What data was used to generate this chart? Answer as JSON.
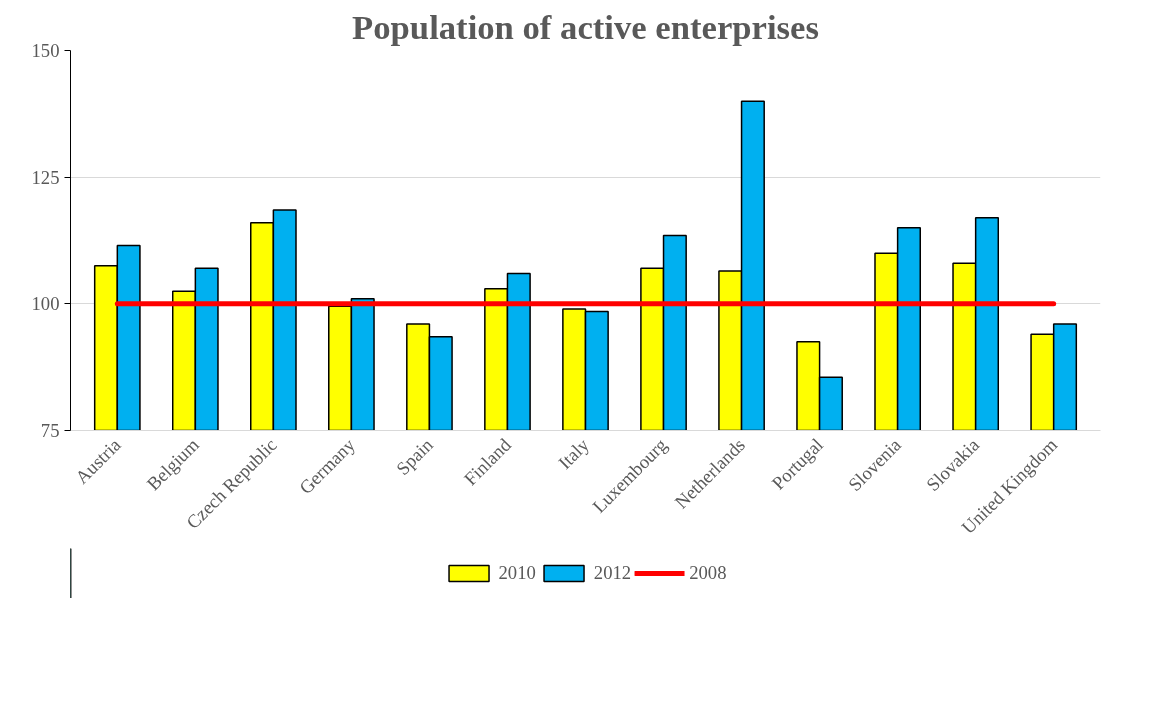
{
  "chart_data": {
    "type": "bar",
    "title": "Population of active enterprises",
    "categories": [
      "Austria",
      "Belgium",
      "Czech Republic",
      "Germany",
      "Spain",
      "Finland",
      "Italy",
      "Luxembourg",
      "Netherlands",
      "Portugal",
      "Slovenia",
      "Slovakia",
      "United Kingdom"
    ],
    "series": [
      {
        "name": "2010",
        "color": "#ffff00",
        "values": [
          107.5,
          102.5,
          116,
          99.5,
          96,
          103,
          99,
          107,
          106.5,
          92.5,
          110,
          108,
          94
        ]
      },
      {
        "name": "2012",
        "color": "#00b0f0",
        "values": [
          111.5,
          107,
          118.5,
          101,
          93.5,
          106,
          98.5,
          113.5,
          140,
          85.5,
          115,
          117,
          96
        ]
      },
      {
        "name": "2008",
        "type": "line",
        "color": "#ff0000",
        "values": [
          100,
          100,
          100,
          100,
          100,
          100,
          100,
          100,
          100,
          100,
          100,
          100,
          100
        ]
      }
    ],
    "ylim": [
      75,
      150
    ],
    "yticks": [
      75,
      100,
      125,
      150
    ],
    "grid": "y",
    "legend": "bottom"
  }
}
